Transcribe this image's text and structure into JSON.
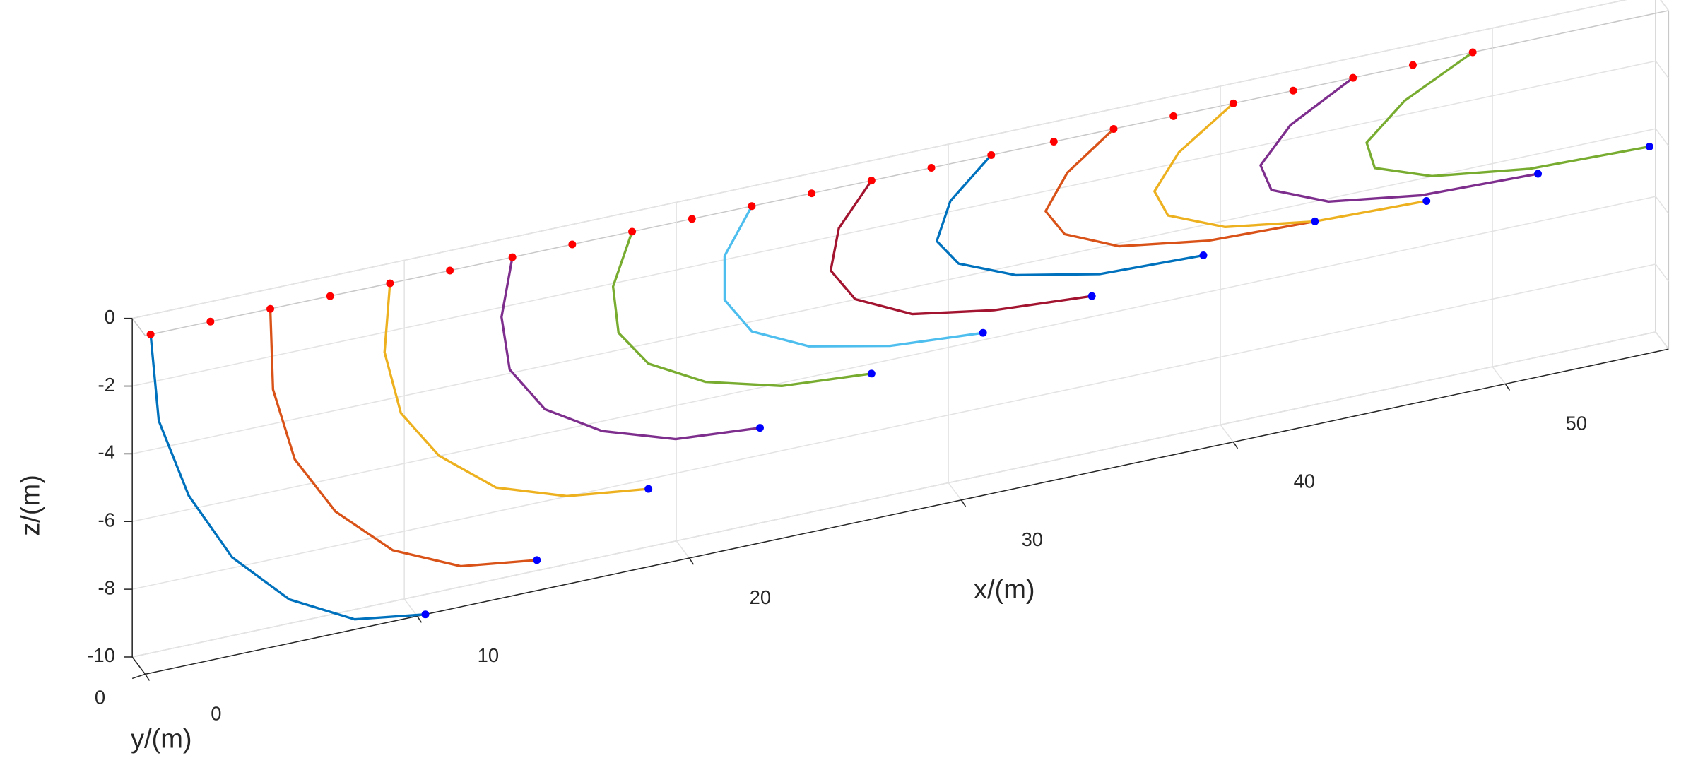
{
  "chart_data": {
    "type": "line3d",
    "xlabel": "x/(m)",
    "ylabel": "y/(m)",
    "zlabel": "z/(m)",
    "xlim": [
      0,
      56
    ],
    "ylim": [
      0,
      1
    ],
    "zlim": [
      -10,
      0
    ],
    "xticks": [
      0,
      10,
      20,
      30,
      40,
      50
    ],
    "yticks": [
      0
    ],
    "zticks": [
      -10,
      -8,
      -6,
      -4,
      -2,
      0
    ],
    "grid": true,
    "series": [
      {
        "mode": "lines",
        "color": "#0072BD",
        "x": [
          0.2,
          0.5,
          1.6,
          3.2,
          5.3,
          7.7,
          10.3
        ],
        "z": [
          0,
          -2.6,
          -5.0,
          -7.1,
          -8.7,
          -9.7,
          -10.0
        ]
      },
      {
        "mode": "lines",
        "color": "#D95319",
        "x": [
          4.6,
          4.7,
          5.5,
          7.0,
          9.1,
          11.6,
          14.4
        ],
        "z": [
          0,
          -2.4,
          -4.6,
          -6.4,
          -7.9,
          -8.8,
          -9.1
        ]
      },
      {
        "mode": "lines",
        "color": "#EDB120",
        "x": [
          9.0,
          8.8,
          9.4,
          10.8,
          12.9,
          15.5,
          18.5
        ],
        "z": [
          0,
          -2.0,
          -3.9,
          -5.4,
          -6.7,
          -7.4,
          -7.7
        ]
      },
      {
        "mode": "lines",
        "color": "#7E2F8E",
        "x": [
          13.5,
          13.1,
          13.4,
          14.7,
          16.8,
          19.5,
          22.6
        ],
        "z": [
          0,
          -1.7,
          -3.3,
          -4.7,
          -5.7,
          -6.4,
          -6.6
        ]
      },
      {
        "mode": "lines",
        "color": "#77AC30",
        "x": [
          17.9,
          17.2,
          17.4,
          18.5,
          20.6,
          23.4,
          26.7
        ],
        "z": [
          0,
          -1.5,
          -2.9,
          -4.0,
          -4.9,
          -5.5,
          -5.7
        ]
      },
      {
        "mode": "lines",
        "color": "#4DBEEE",
        "x": [
          22.3,
          21.3,
          21.3,
          22.3,
          24.4,
          27.4,
          30.8
        ],
        "z": [
          0,
          -1.3,
          -2.6,
          -3.7,
          -4.5,
          -5.0,
          -5.2
        ]
      },
      {
        "mode": "lines",
        "color": "#A2142F",
        "x": [
          26.7,
          25.5,
          25.2,
          26.1,
          28.2,
          31.2,
          34.8
        ],
        "z": [
          0,
          -1.2,
          -2.4,
          -3.4,
          -4.2,
          -4.6,
          -4.8
        ]
      },
      {
        "mode": "lines",
        "color": "#0072BD",
        "x": [
          31.1,
          29.6,
          29.1,
          29.9,
          32.0,
          35.1,
          38.9
        ],
        "z": [
          0,
          -1.1,
          -2.2,
          -3.0,
          -3.7,
          -4.2,
          -4.3
        ]
      },
      {
        "mode": "lines",
        "color": "#D95319",
        "x": [
          35.6,
          33.9,
          33.1,
          33.8,
          35.8,
          39.1,
          43.0
        ],
        "z": [
          0,
          -1.0,
          -2.0,
          -2.8,
          -3.5,
          -3.9,
          -4.0
        ]
      },
      {
        "mode": "lines",
        "color": "#EDB120",
        "x": [
          40.0,
          38.0,
          37.1,
          37.6,
          39.7,
          43.0,
          47.1
        ],
        "z": [
          0,
          -1.1,
          -2.1,
          -2.9,
          -3.6,
          -4.0,
          -4.1
        ]
      },
      {
        "mode": "lines",
        "color": "#7E2F8E",
        "x": [
          44.4,
          42.1,
          41.0,
          41.4,
          43.5,
          46.9,
          51.2
        ],
        "z": [
          0,
          -1.0,
          -2.0,
          -2.8,
          -3.5,
          -3.9,
          -4.0
        ]
      },
      {
        "mode": "lines",
        "color": "#77AC30",
        "x": [
          48.8,
          46.3,
          44.9,
          45.2,
          47.3,
          50.9,
          55.3
        ],
        "z": [
          0,
          -1.0,
          -2.0,
          -2.8,
          -3.4,
          -3.8,
          -3.9
        ]
      },
      {
        "mode": "markers",
        "color": "#ff0000",
        "x": [
          0.2,
          2.4,
          4.6,
          6.8,
          9.0,
          11.2,
          13.5,
          15.7,
          17.9,
          20.1,
          22.3,
          24.5,
          26.7,
          28.9,
          31.1,
          33.4,
          35.6,
          37.8,
          40.0,
          42.2,
          44.4,
          46.6,
          48.8
        ],
        "z": [
          0,
          0,
          0,
          0,
          0,
          0,
          0,
          0,
          0,
          0,
          0,
          0,
          0,
          0,
          0,
          0,
          0,
          0,
          0,
          0,
          0,
          0,
          0
        ]
      },
      {
        "mode": "markers",
        "color": "#0000ff",
        "x": [
          10.3,
          14.4,
          18.5,
          22.6,
          26.7,
          30.8,
          34.8,
          38.9,
          43.0,
          47.1,
          51.2,
          55.3
        ],
        "z": [
          -10.0,
          -9.1,
          -7.7,
          -6.6,
          -5.7,
          -5.2,
          -4.8,
          -4.3,
          -4.0,
          -4.1,
          -4.0,
          -3.9
        ]
      }
    ]
  }
}
